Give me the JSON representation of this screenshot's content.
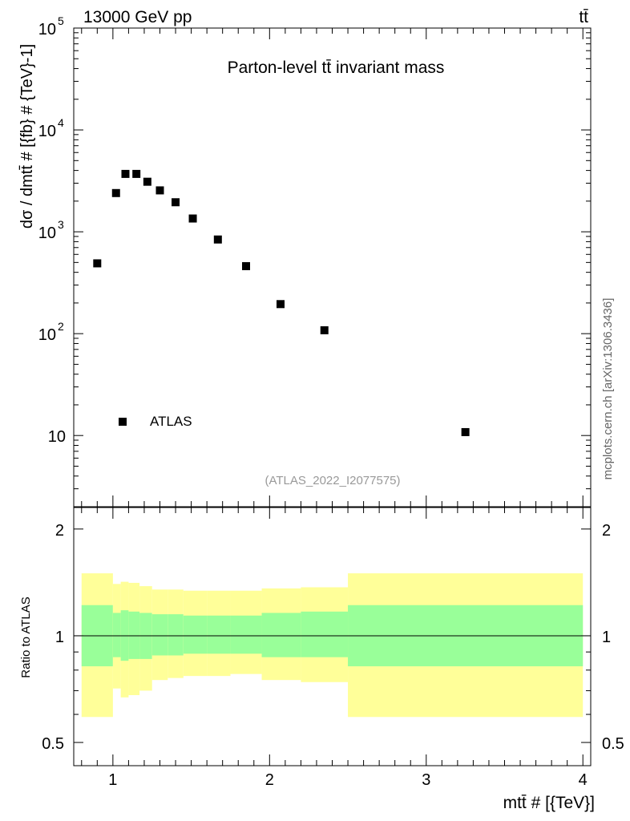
{
  "header": {
    "energy_label": "13000 GeV pp",
    "process_label": "tt̄"
  },
  "side_label": "mcplots.cern.ch [arXiv:1306.3436]",
  "chart_data": [
    {
      "type": "scatter",
      "title": "Parton-level tt̄ invariant mass",
      "analysis_id": "(ATLAS_2022_I2077575)",
      "ylabel": "dσ / dmtt̄ # [{fb} # {TeV}-1]",
      "yscale": "log",
      "ylim": [
        2,
        100000
      ],
      "xlim": [
        0.75,
        4.05
      ],
      "y_ticks": [
        {
          "value": 10,
          "label": "10"
        },
        {
          "value": 100,
          "label": "10",
          "exp": "2"
        },
        {
          "value": 1000,
          "label": "10",
          "exp": "3"
        },
        {
          "value": 10000,
          "label": "10",
          "exp": "4"
        },
        {
          "value": 100000,
          "label": "10",
          "exp": "5"
        }
      ],
      "legend": {
        "label": "ATLAS",
        "position": "lower-left"
      },
      "series": [
        {
          "name": "ATLAS",
          "marker": "square",
          "color": "#000000",
          "x": [
            0.9,
            1.02,
            1.08,
            1.15,
            1.22,
            1.3,
            1.4,
            1.51,
            1.67,
            1.85,
            2.07,
            2.35,
            3.25
          ],
          "y": [
            490,
            2400,
            3700,
            3700,
            3100,
            2550,
            1950,
            1350,
            840,
            460,
            195,
            108,
            10.8
          ]
        }
      ]
    },
    {
      "type": "area",
      "ylabel": "Ratio to ATLAS",
      "xlabel": "mtt̄ # [{TeV}]",
      "yscale": "log",
      "ylim": [
        0.43,
        2.3
      ],
      "xlim": [
        0.75,
        4.05
      ],
      "x_ticks": [
        1,
        2,
        3,
        4
      ],
      "y_ticks": [
        0.5,
        1,
        2
      ],
      "reference_line": 1,
      "bins": [
        {
          "x0": 0.8,
          "x1": 1.0,
          "inner_lo": 0.82,
          "inner_hi": 1.22,
          "outer_lo": 0.59,
          "outer_hi": 1.5
        },
        {
          "x0": 1.0,
          "x1": 1.05,
          "inner_lo": 0.87,
          "inner_hi": 1.16,
          "outer_lo": 0.71,
          "outer_hi": 1.4
        },
        {
          "x0": 1.05,
          "x1": 1.1,
          "inner_lo": 0.85,
          "inner_hi": 1.18,
          "outer_lo": 0.67,
          "outer_hi": 1.42
        },
        {
          "x0": 1.1,
          "x1": 1.17,
          "inner_lo": 0.86,
          "inner_hi": 1.17,
          "outer_lo": 0.68,
          "outer_hi": 1.41
        },
        {
          "x0": 1.17,
          "x1": 1.25,
          "inner_lo": 0.86,
          "inner_hi": 1.16,
          "outer_lo": 0.7,
          "outer_hi": 1.38
        },
        {
          "x0": 1.25,
          "x1": 1.35,
          "inner_lo": 0.88,
          "inner_hi": 1.15,
          "outer_lo": 0.75,
          "outer_hi": 1.35
        },
        {
          "x0": 1.35,
          "x1": 1.45,
          "inner_lo": 0.88,
          "inner_hi": 1.15,
          "outer_lo": 0.76,
          "outer_hi": 1.35
        },
        {
          "x0": 1.45,
          "x1": 1.6,
          "inner_lo": 0.89,
          "inner_hi": 1.14,
          "outer_lo": 0.77,
          "outer_hi": 1.34
        },
        {
          "x0": 1.6,
          "x1": 1.75,
          "inner_lo": 0.89,
          "inner_hi": 1.14,
          "outer_lo": 0.77,
          "outer_hi": 1.34
        },
        {
          "x0": 1.75,
          "x1": 1.95,
          "inner_lo": 0.89,
          "inner_hi": 1.14,
          "outer_lo": 0.78,
          "outer_hi": 1.34
        },
        {
          "x0": 1.95,
          "x1": 2.2,
          "inner_lo": 0.87,
          "inner_hi": 1.16,
          "outer_lo": 0.75,
          "outer_hi": 1.36
        },
        {
          "x0": 2.2,
          "x1": 2.5,
          "inner_lo": 0.87,
          "inner_hi": 1.17,
          "outer_lo": 0.74,
          "outer_hi": 1.37
        },
        {
          "x0": 2.5,
          "x1": 4.0,
          "inner_lo": 0.82,
          "inner_hi": 1.22,
          "outer_lo": 0.59,
          "outer_hi": 1.5
        }
      ],
      "colors": {
        "inner": "#99ff99",
        "outer": "#ffff99"
      }
    }
  ]
}
